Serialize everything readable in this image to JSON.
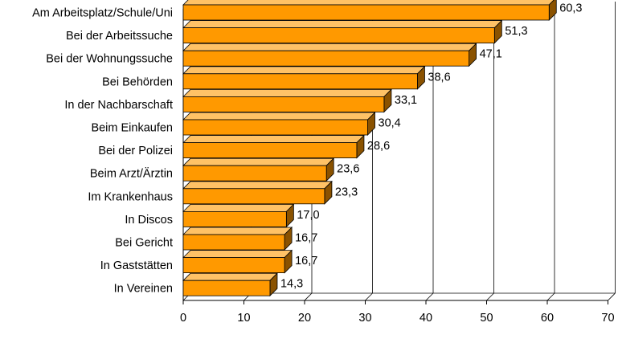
{
  "chart_data": {
    "type": "bar",
    "orientation": "horizontal",
    "three_d": true,
    "categories": [
      "Am Arbeitsplatz/Schule/Uni",
      "Bei der Arbeitssuche",
      "Bei der Wohnungssuche",
      "Bei Behörden",
      "In der Nachbarschaft",
      "Beim Einkaufen",
      "Bei der Polizei",
      "Beim Arzt/Ärztin",
      "Im Krankenhaus",
      "In Discos",
      "Bei Gericht",
      "In Gaststätten",
      "In Vereinen"
    ],
    "values": [
      60.3,
      51.3,
      47.1,
      38.6,
      33.1,
      30.4,
      28.6,
      23.6,
      23.3,
      17.0,
      16.7,
      16.7,
      14.3
    ],
    "value_labels": [
      "60,3",
      "51,3",
      "47,1",
      "38,6",
      "33,1",
      "30,4",
      "28,6",
      "23,6",
      "23,3",
      "17,0",
      "16,7",
      "16,7",
      "14,3"
    ],
    "x_ticks": [
      "0",
      "10",
      "20",
      "30",
      "40",
      "50",
      "60",
      "70"
    ],
    "xlim": [
      0,
      70
    ],
    "title": "",
    "xlabel": "",
    "ylabel": "",
    "grid": "vertical",
    "legend": "none",
    "colors": {
      "bar_front": "#ff9900",
      "bar_top": "#ffc266",
      "bar_side": "#8a5200",
      "bar_outline": "#000000",
      "grid": "#000000"
    }
  }
}
